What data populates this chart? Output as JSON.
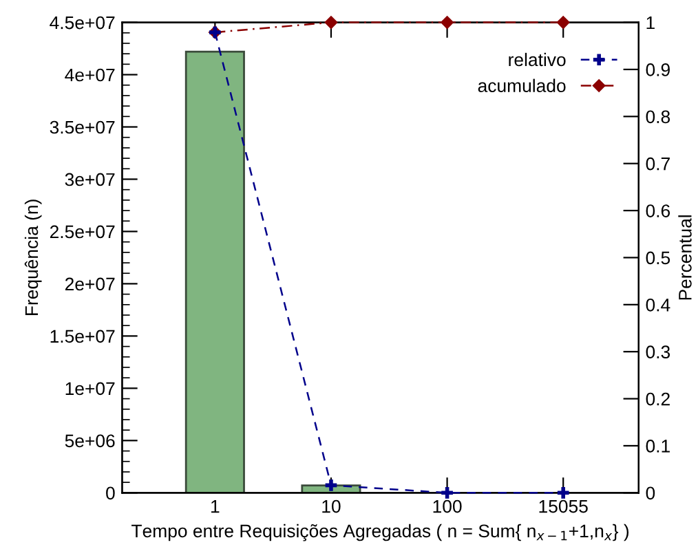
{
  "chart_data": {
    "type": "bar",
    "xlabel": "Tempo entre Requisições Agregadas ( n = Sum{ n$_{x−1}$+1,n$_{x}$} )",
    "ylabel": "Frequência (n)",
    "y2label": "Percentual",
    "categories": [
      "1",
      "10",
      "100",
      "15055"
    ],
    "series": [
      {
        "color": "#80b580",
        "values": [
          42200000,
          700000,
          null,
          null
        ]
      },
      {
        "type": "line",
        "name": "relativo",
        "color": "#00008b",
        "axis": "y2",
        "marker": "cross",
        "line_style": "dashed",
        "values": [
          0.979,
          0.016,
          0,
          0
        ]
      },
      {
        "type": "line",
        "name": "acumulado",
        "color": "#8b0000",
        "axis": "y2",
        "marker": "diamond",
        "line_style": "dashdot",
        "values": [
          0.979,
          1,
          1,
          1
        ]
      }
    ],
    "ylim": [
      0,
      45000000
    ],
    "yticks": [
      {
        "value": 0,
        "label": "0"
      },
      {
        "value": 5000000,
        "label": "5e+06"
      },
      {
        "value": 10000000,
        "label": "1e+07"
      },
      {
        "value": 15000000,
        "label": "1.5e+07"
      },
      {
        "value": 20000000,
        "label": "2e+07"
      },
      {
        "value": 25000000,
        "label": "2.5e+07"
      },
      {
        "value": 30000000,
        "label": "3e+07"
      },
      {
        "value": 35000000,
        "label": "3.5e+07"
      },
      {
        "value": 40000000,
        "label": "4e+07"
      },
      {
        "value": 45000000,
        "label": "4.5e+07"
      }
    ],
    "y2lim": [
      0,
      1
    ],
    "y2ticks": [
      0,
      0.1,
      0.2,
      0.3,
      0.4,
      0.5,
      0.6,
      0.7,
      0.8,
      0.9,
      1
    ],
    "grid": false,
    "legend": "top right"
  }
}
